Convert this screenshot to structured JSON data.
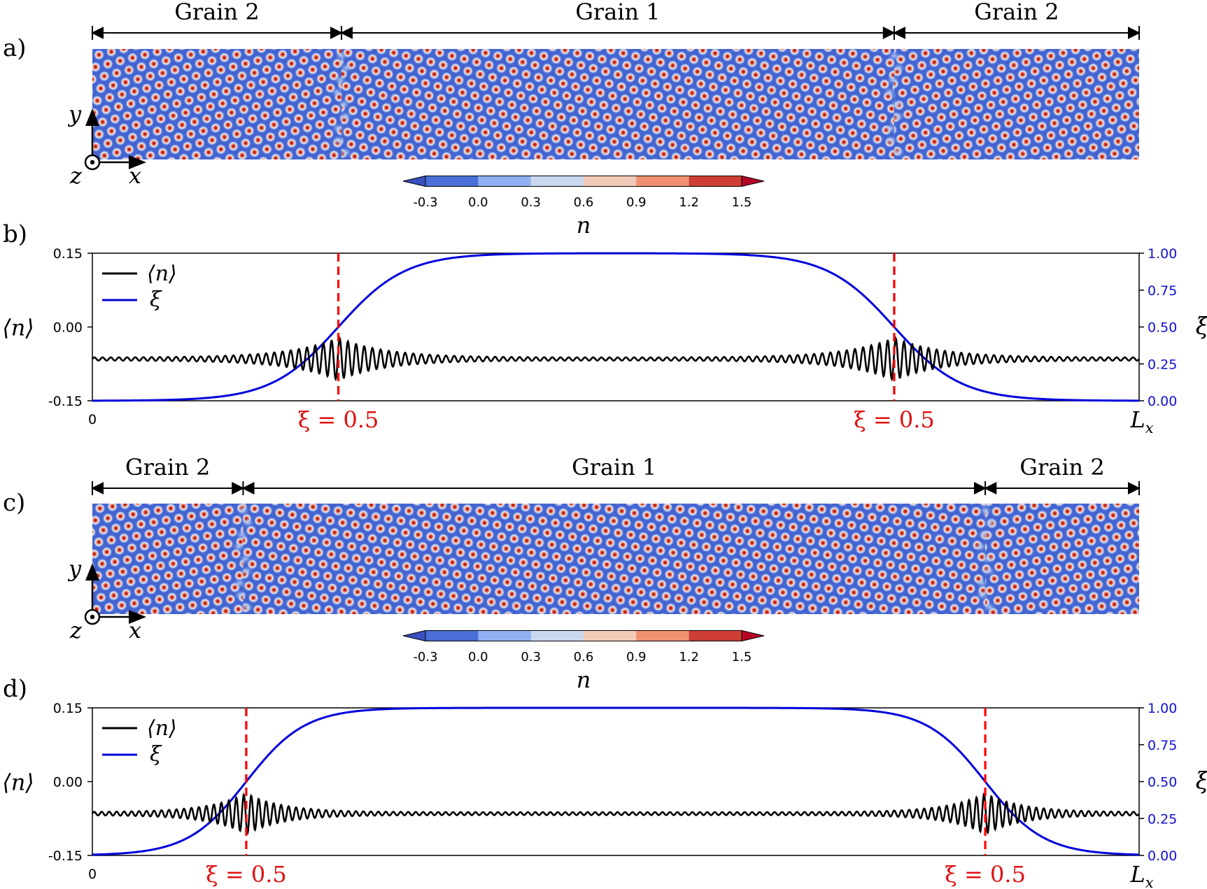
{
  "figure": {
    "panels": [
      {
        "letter": "a)",
        "type": "field-map",
        "grains": [
          {
            "label": "Grain 2",
            "from": 0.0,
            "to": 0.238
          },
          {
            "label": "Grain 1",
            "from": 0.238,
            "to": 0.766
          },
          {
            "label": "Grain 2",
            "from": 0.766,
            "to": 1.0
          }
        ],
        "boundaries": [
          0.238,
          0.766
        ],
        "axes": {
          "y": "y",
          "z": "z",
          "x": "x"
        }
      },
      {
        "letter": "b)",
        "type": "profile",
        "boundaries": [
          0.235,
          0.766
        ],
        "boundary_label": "ξ = 0.5"
      },
      {
        "letter": "c)",
        "type": "field-map",
        "grains": [
          {
            "label": "Grain 2",
            "from": 0.0,
            "to": 0.144
          },
          {
            "label": "Grain 1",
            "from": 0.144,
            "to": 0.853
          },
          {
            "label": "Grain 2",
            "from": 0.853,
            "to": 1.0
          }
        ],
        "boundaries": [
          0.144,
          0.853
        ],
        "axes": {
          "y": "y",
          "z": "z",
          "x": "x"
        }
      },
      {
        "letter": "d)",
        "type": "profile",
        "boundaries": [
          0.147,
          0.853
        ],
        "boundary_label": "ξ = 0.5"
      }
    ],
    "colorbar": {
      "ticks": [
        "-0.3",
        "0.0",
        "0.3",
        "0.6",
        "0.9",
        "1.2",
        "1.5"
      ],
      "colors": [
        "#4a6fd6",
        "#8fb0f2",
        "#c9d7ef",
        "#f2cbb8",
        "#ef9070",
        "#cd3f35"
      ],
      "under_color": "#3a4fc0",
      "over_color": "#b40426",
      "label": "n"
    }
  },
  "chart_data": [
    {
      "type": "line",
      "panel": "b)",
      "xlabel_start": "0",
      "xlabel_end": "Lx",
      "ylabel_left": "⟨n⟩",
      "ylabel_right": "ξ",
      "ylim_left": [
        -0.15,
        0.15
      ],
      "ylim_right": [
        0.0,
        1.0
      ],
      "yticks_left": [
        "0.15",
        "0.00",
        "-0.15"
      ],
      "yticks_right": [
        "1.00",
        "0.75",
        "0.50",
        "0.25",
        "0.00"
      ],
      "legend": [
        "⟨n⟩",
        "ξ"
      ],
      "legend_position": "top-left",
      "series": [
        {
          "name": "⟨n⟩",
          "axis": "left",
          "color": "#000000",
          "mean": -0.065,
          "oscillation_peak": 0.04,
          "oscillation_sites": [
            0.235,
            0.766
          ],
          "oscillation_decay": 0.045,
          "periods_across": 128
        },
        {
          "name": "ξ",
          "axis": "right",
          "color": "#0000dd",
          "low": 0.0,
          "high": 1.0,
          "transitions": [
            0.235,
            0.766
          ],
          "transition_width": 0.032
        }
      ],
      "vlines": [
        {
          "x": 0.235,
          "label": "ξ = 0.5",
          "color": "#ff0000"
        },
        {
          "x": 0.766,
          "label": "ξ = 0.5",
          "color": "#ff0000"
        }
      ]
    },
    {
      "type": "line",
      "panel": "d)",
      "xlabel_start": "0",
      "xlabel_end": "Lx",
      "ylabel_left": "⟨n⟩",
      "ylabel_right": "ξ",
      "ylim_left": [
        -0.15,
        0.15
      ],
      "ylim_right": [
        0.0,
        1.0
      ],
      "yticks_left": [
        "0.15",
        "0.00",
        "-0.15"
      ],
      "yticks_right": [
        "1.00",
        "0.75",
        "0.50",
        "0.25",
        "0.00"
      ],
      "legend": [
        "⟨n⟩",
        "ξ"
      ],
      "legend_position": "top-left",
      "series": [
        {
          "name": "⟨n⟩",
          "axis": "left",
          "color": "#000000",
          "mean": -0.065,
          "oscillation_peak": 0.038,
          "oscillation_sites": [
            0.147,
            0.853
          ],
          "oscillation_decay": 0.035,
          "periods_across": 140
        },
        {
          "name": "ξ",
          "axis": "right",
          "color": "#0000dd",
          "low": 0.0,
          "high": 1.0,
          "transitions": [
            0.147,
            0.853
          ],
          "transition_width": 0.028
        }
      ],
      "vlines": [
        {
          "x": 0.147,
          "label": "ξ = 0.5",
          "color": "#ff0000"
        },
        {
          "x": 0.853,
          "label": "ξ = 0.5",
          "color": "#ff0000"
        }
      ]
    }
  ]
}
